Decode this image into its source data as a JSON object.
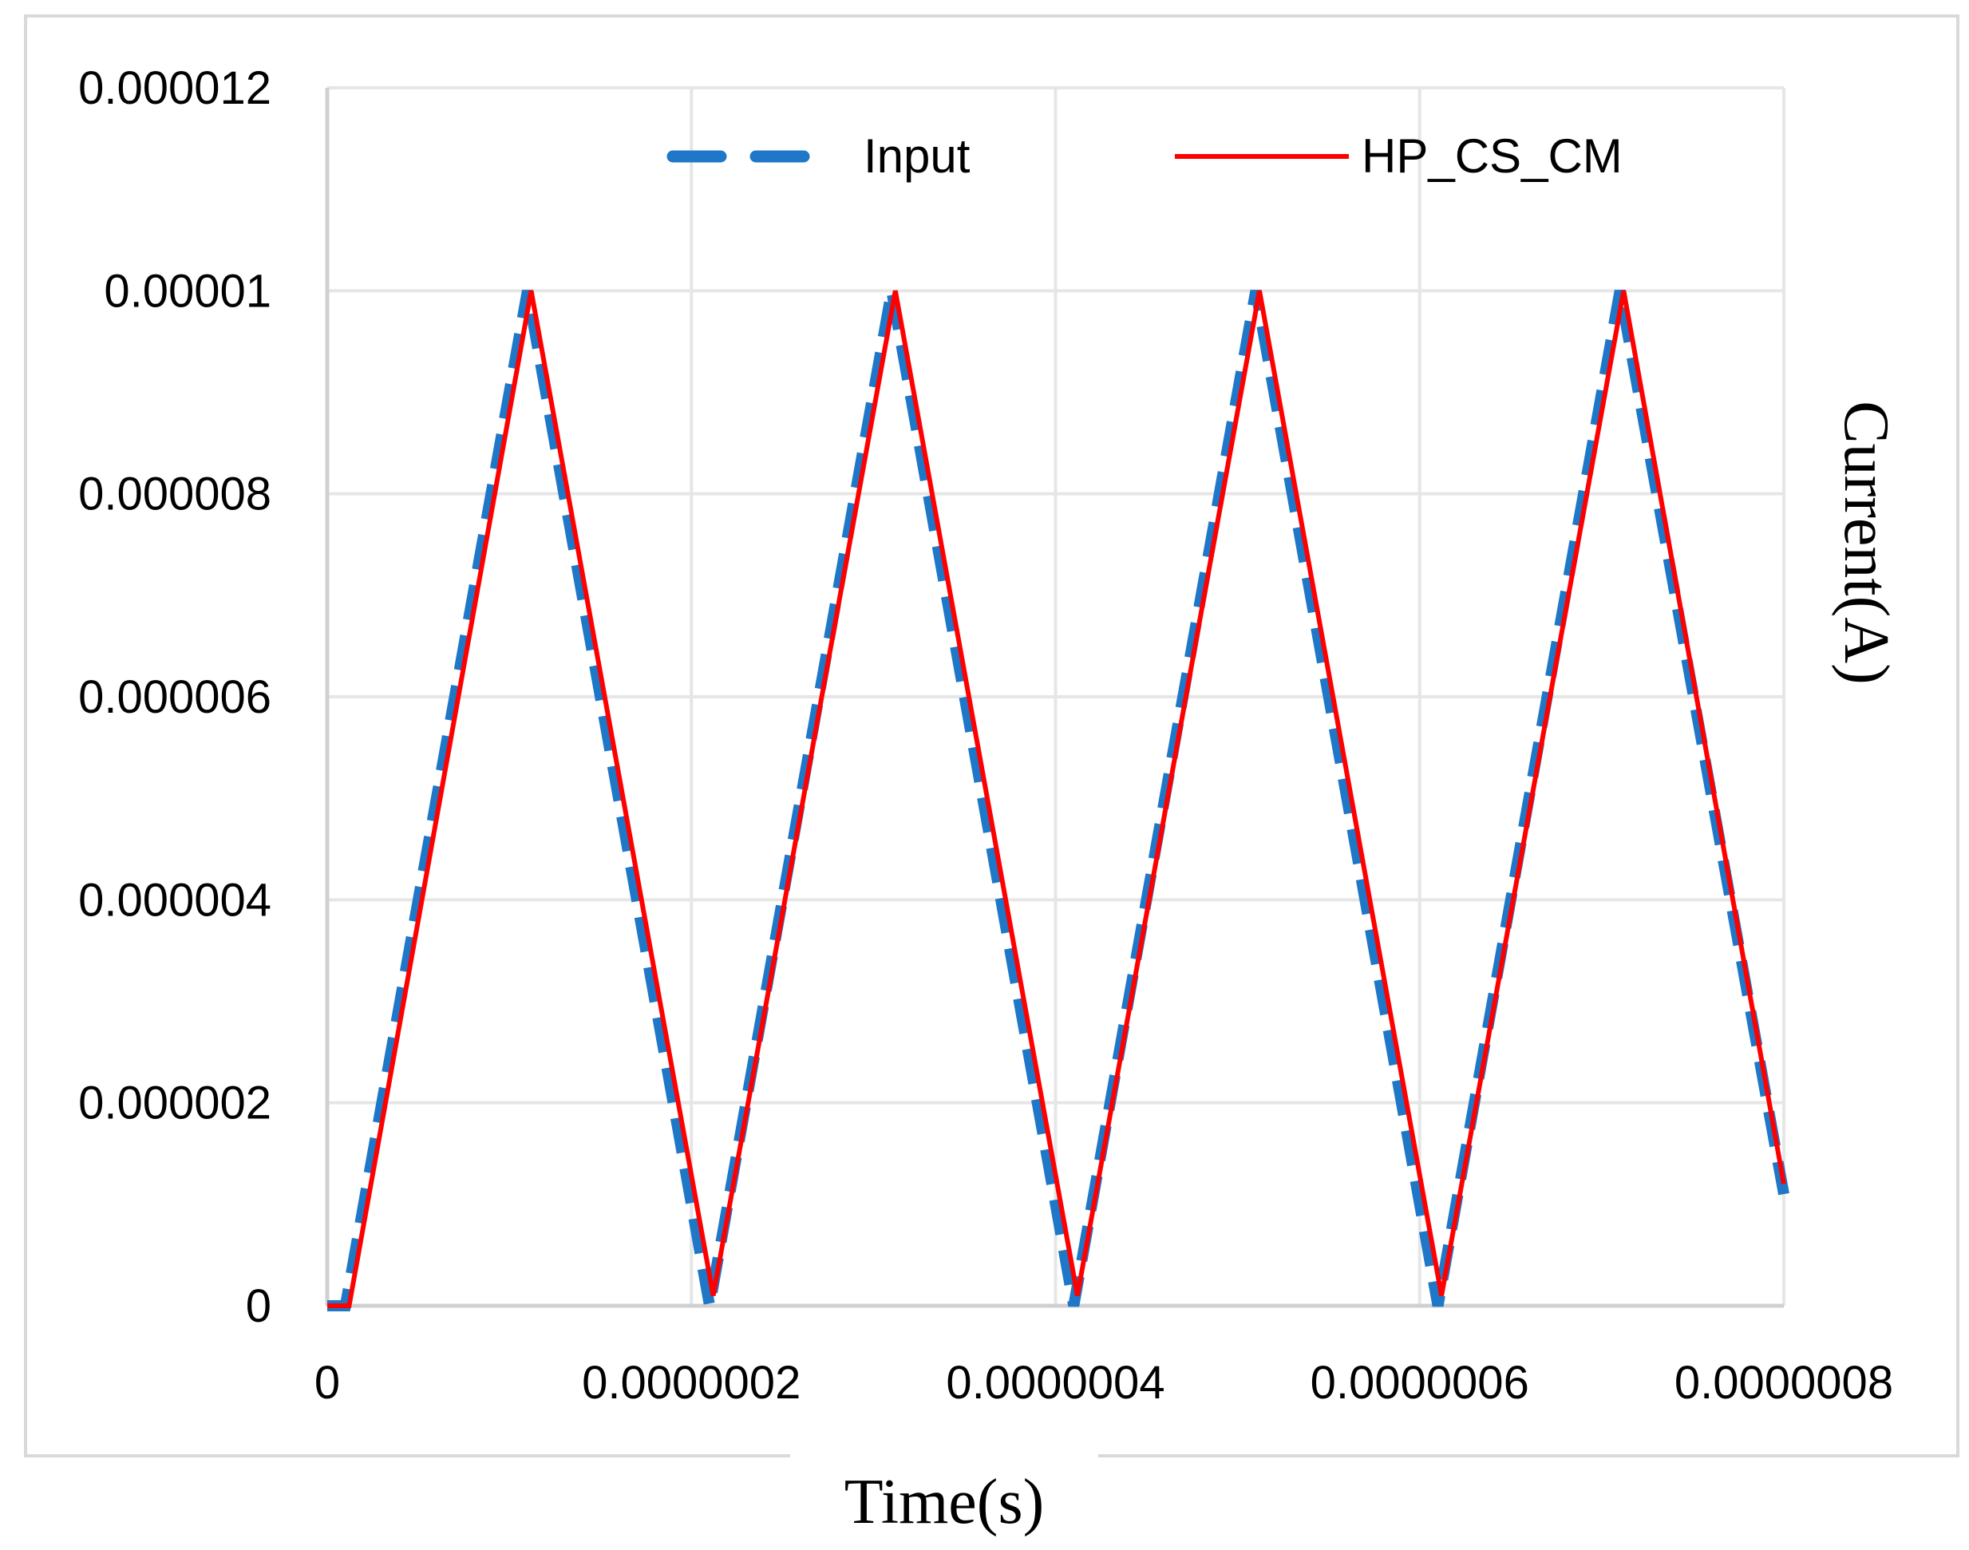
{
  "chart_data": {
    "type": "line",
    "title": "",
    "xlabel": "Time(s)",
    "ylabel": "Current(A)",
    "xlim": [
      0,
      8e-07
    ],
    "ylim": [
      0,
      1.2e-05
    ],
    "grid": true,
    "legend_position": "top",
    "x_ticks": [
      {
        "value": 0,
        "label": "0"
      },
      {
        "value": 2e-07,
        "label": "0.0000002"
      },
      {
        "value": 4e-07,
        "label": "0.0000004"
      },
      {
        "value": 6e-07,
        "label": "0.0000006"
      },
      {
        "value": 8e-07,
        "label": "0.0000008"
      }
    ],
    "y_ticks": [
      {
        "value": 0,
        "label": "0"
      },
      {
        "value": 2e-06,
        "label": "0.000002"
      },
      {
        "value": 4e-06,
        "label": "0.000004"
      },
      {
        "value": 6e-06,
        "label": "0.000006"
      },
      {
        "value": 8e-06,
        "label": "0.000008"
      },
      {
        "value": 1e-05,
        "label": "0.00001"
      },
      {
        "value": 1.2e-05,
        "label": "0.000012"
      }
    ],
    "series": [
      {
        "name": "Input",
        "color": "#1f77c8",
        "style": "dashed",
        "points": [
          [
            0,
            0
          ],
          [
            1e-08,
            0
          ],
          [
            1.1e-07,
            1e-05
          ],
          [
            2.1e-07,
            0
          ],
          [
            3.1e-07,
            1e-05
          ],
          [
            4.1e-07,
            0
          ],
          [
            5.1e-07,
            1e-05
          ],
          [
            6.1e-07,
            0
          ],
          [
            7.1e-07,
            1e-05
          ],
          [
            8e-07,
            1.1e-06
          ]
        ]
      },
      {
        "name": "HP_CS_CM",
        "color": "#ff0000",
        "style": "solid",
        "points": [
          [
            0,
            0
          ],
          [
            1.2e-08,
            0
          ],
          [
            1.12e-07,
            1e-05
          ],
          [
            2.12e-07,
            1e-07
          ],
          [
            3.12e-07,
            1e-05
          ],
          [
            4.12e-07,
            1e-07
          ],
          [
            5.12e-07,
            1e-05
          ],
          [
            6.12e-07,
            1e-07
          ],
          [
            7.12e-07,
            1e-05
          ],
          [
            8e-07,
            1.2e-06
          ]
        ]
      }
    ]
  }
}
